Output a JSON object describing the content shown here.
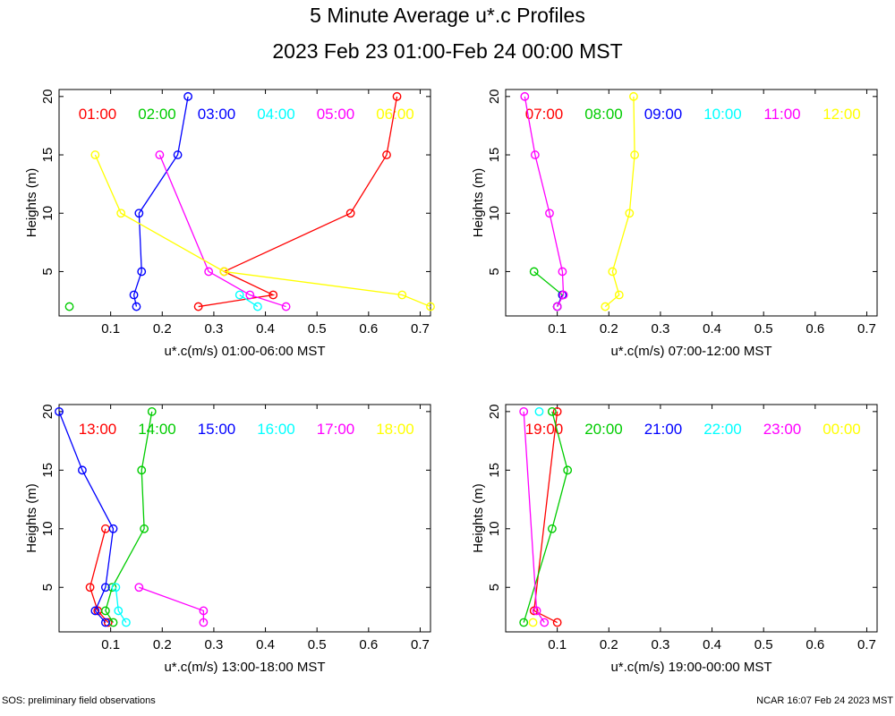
{
  "title": "5 Minute Average u*.c Profiles",
  "subtitle": "2023 Feb 23 01:00-Feb 24 00:00 MST",
  "footer": {
    "left": "SOS: preliminary field observations",
    "right": "NCAR 16:07 Feb 24 2023 MST"
  },
  "chart_data": [
    {
      "type": "line",
      "xlabel": "u*.c(m/s) 01:00-06:00 MST",
      "ylabel": "Heights (m)",
      "xlim": [
        0.0,
        0.72
      ],
      "ylim": [
        1.2,
        20.6
      ],
      "xticks": [
        "0.1",
        "0.2",
        "0.3",
        "0.4",
        "0.5",
        "0.6",
        "0.7"
      ],
      "yticks": [
        "5",
        "10",
        "15",
        "20"
      ],
      "legend": [
        {
          "label": "01:00",
          "color": "#ff0000"
        },
        {
          "label": "02:00",
          "color": "#00cc00"
        },
        {
          "label": "03:00",
          "color": "#0000ff"
        },
        {
          "label": "04:00",
          "color": "#00ffff"
        },
        {
          "label": "05:00",
          "color": "#ff00ff"
        },
        {
          "label": "06:00",
          "color": "#ffff00"
        }
      ],
      "series": [
        {
          "name": "01:00",
          "color": "#ff0000",
          "points": [
            [
              0.27,
              2
            ],
            [
              0.415,
              3
            ],
            [
              0.32,
              5
            ],
            [
              0.565,
              10
            ],
            [
              0.635,
              15
            ],
            [
              0.655,
              20
            ]
          ]
        },
        {
          "name": "02:00",
          "color": "#00cc00",
          "points": [
            [
              0.02,
              2
            ]
          ]
        },
        {
          "name": "03:00",
          "color": "#0000ff",
          "points": [
            [
              0.15,
              2
            ],
            [
              0.145,
              3
            ],
            [
              0.16,
              5
            ],
            [
              0.155,
              10
            ],
            [
              0.23,
              15
            ],
            [
              0.25,
              20
            ]
          ]
        },
        {
          "name": "04:00",
          "color": "#00ffff",
          "points": [
            [
              0.385,
              2
            ],
            [
              0.35,
              3
            ]
          ]
        },
        {
          "name": "05:00",
          "color": "#ff00ff",
          "points": [
            [
              0.44,
              2
            ],
            [
              0.37,
              3
            ],
            [
              0.29,
              5
            ],
            [
              0.195,
              15
            ]
          ]
        },
        {
          "name": "06:00",
          "color": "#ffff00",
          "points": [
            [
              0.72,
              2
            ],
            [
              0.665,
              3
            ],
            [
              0.32,
              5
            ],
            [
              0.12,
              10
            ],
            [
              0.07,
              15
            ]
          ]
        }
      ]
    },
    {
      "type": "line",
      "xlabel": "u*.c(m/s) 07:00-12:00 MST",
      "ylabel": "Heights (m)",
      "xlim": [
        0.0,
        0.72
      ],
      "ylim": [
        1.2,
        20.6
      ],
      "xticks": [
        "0.1",
        "0.2",
        "0.3",
        "0.4",
        "0.5",
        "0.6",
        "0.7"
      ],
      "yticks": [
        "5",
        "10",
        "15",
        "20"
      ],
      "legend": [
        {
          "label": "07:00",
          "color": "#ff0000"
        },
        {
          "label": "08:00",
          "color": "#00cc00"
        },
        {
          "label": "09:00",
          "color": "#0000ff"
        },
        {
          "label": "10:00",
          "color": "#00ffff"
        },
        {
          "label": "11:00",
          "color": "#ff00ff"
        },
        {
          "label": "12:00",
          "color": "#ffff00"
        }
      ],
      "series": [
        {
          "name": "08:00",
          "color": "#00cc00",
          "points": [
            [
              0.1,
              2
            ],
            [
              0.11,
              3
            ],
            [
              0.055,
              5
            ]
          ]
        },
        {
          "name": "09:00",
          "color": "#0000ff",
          "points": [
            [
              0.1,
              2
            ],
            [
              0.11,
              3
            ]
          ]
        },
        {
          "name": "11:00",
          "color": "#ff00ff",
          "points": [
            [
              0.1,
              2
            ],
            [
              0.112,
              3
            ],
            [
              0.11,
              5
            ],
            [
              0.085,
              10
            ],
            [
              0.057,
              15
            ],
            [
              0.037,
              20
            ]
          ]
        },
        {
          "name": "12:00",
          "color": "#ffff00",
          "points": [
            [
              0.193,
              2
            ],
            [
              0.22,
              3
            ],
            [
              0.207,
              5
            ],
            [
              0.24,
              10
            ],
            [
              0.25,
              15
            ],
            [
              0.248,
              20
            ]
          ]
        }
      ]
    },
    {
      "type": "line",
      "xlabel": "u*.c(m/s) 13:00-18:00 MST",
      "ylabel": "Heights (m)",
      "xlim": [
        0.0,
        0.72
      ],
      "ylim": [
        1.2,
        20.6
      ],
      "xticks": [
        "0.1",
        "0.2",
        "0.3",
        "0.4",
        "0.5",
        "0.6",
        "0.7"
      ],
      "yticks": [
        "5",
        "10",
        "15",
        "20"
      ],
      "legend": [
        {
          "label": "13:00",
          "color": "#ff0000"
        },
        {
          "label": "14:00",
          "color": "#00cc00"
        },
        {
          "label": "15:00",
          "color": "#0000ff"
        },
        {
          "label": "16:00",
          "color": "#00ffff"
        },
        {
          "label": "17:00",
          "color": "#ff00ff"
        },
        {
          "label": "18:00",
          "color": "#ffff00"
        }
      ],
      "series": [
        {
          "name": "13:00",
          "color": "#ff0000",
          "points": [
            [
              0.095,
              2
            ],
            [
              0.075,
              3
            ],
            [
              0.06,
              5
            ],
            [
              0.09,
              10
            ]
          ]
        },
        {
          "name": "14:00",
          "color": "#00cc00",
          "points": [
            [
              0.105,
              2
            ],
            [
              0.09,
              3
            ],
            [
              0.103,
              5
            ],
            [
              0.165,
              10
            ],
            [
              0.16,
              15
            ],
            [
              0.18,
              20
            ]
          ]
        },
        {
          "name": "15:00",
          "color": "#0000ff",
          "points": [
            [
              0.09,
              2
            ],
            [
              0.07,
              3
            ],
            [
              0.09,
              5
            ],
            [
              0.105,
              10
            ],
            [
              0.045,
              15
            ],
            [
              0.0,
              20
            ]
          ]
        },
        {
          "name": "16:00",
          "color": "#00ffff",
          "points": [
            [
              0.13,
              2
            ],
            [
              0.115,
              3
            ],
            [
              0.11,
              5
            ]
          ]
        },
        {
          "name": "17:00",
          "color": "#ff00ff",
          "points": [
            [
              0.28,
              2
            ],
            [
              0.28,
              3
            ],
            [
              0.155,
              5
            ]
          ]
        }
      ]
    },
    {
      "type": "line",
      "xlabel": "u*.c(m/s) 19:00-00:00 MST",
      "ylabel": "Heights (m)",
      "xlim": [
        0.0,
        0.72
      ],
      "ylim": [
        1.2,
        20.6
      ],
      "xticks": [
        "0.1",
        "0.2",
        "0.3",
        "0.4",
        "0.5",
        "0.6",
        "0.7"
      ],
      "yticks": [
        "5",
        "10",
        "15",
        "20"
      ],
      "legend": [
        {
          "label": "19:00",
          "color": "#ff0000"
        },
        {
          "label": "20:00",
          "color": "#00cc00"
        },
        {
          "label": "21:00",
          "color": "#0000ff"
        },
        {
          "label": "22:00",
          "color": "#00ffff"
        },
        {
          "label": "23:00",
          "color": "#ff00ff"
        },
        {
          "label": "00:00",
          "color": "#ffff00"
        }
      ],
      "series": [
        {
          "name": "19:00",
          "color": "#ff0000",
          "points": [
            [
              0.1,
              2
            ],
            [
              0.055,
              3
            ],
            [
              0.1,
              20
            ]
          ]
        },
        {
          "name": "20:00",
          "color": "#00cc00",
          "points": [
            [
              0.035,
              2
            ],
            [
              0.09,
              10
            ],
            [
              0.12,
              15
            ],
            [
              0.09,
              20
            ]
          ]
        },
        {
          "name": "22:00",
          "color": "#00ffff",
          "points": [
            [
              0.065,
              20
            ]
          ]
        },
        {
          "name": "23:00",
          "color": "#ff00ff",
          "points": [
            [
              0.075,
              2
            ],
            [
              0.06,
              3
            ],
            [
              0.035,
              20
            ]
          ]
        },
        {
          "name": "00:00",
          "color": "#ffff00",
          "points": [
            [
              0.053,
              2
            ]
          ]
        }
      ]
    }
  ]
}
